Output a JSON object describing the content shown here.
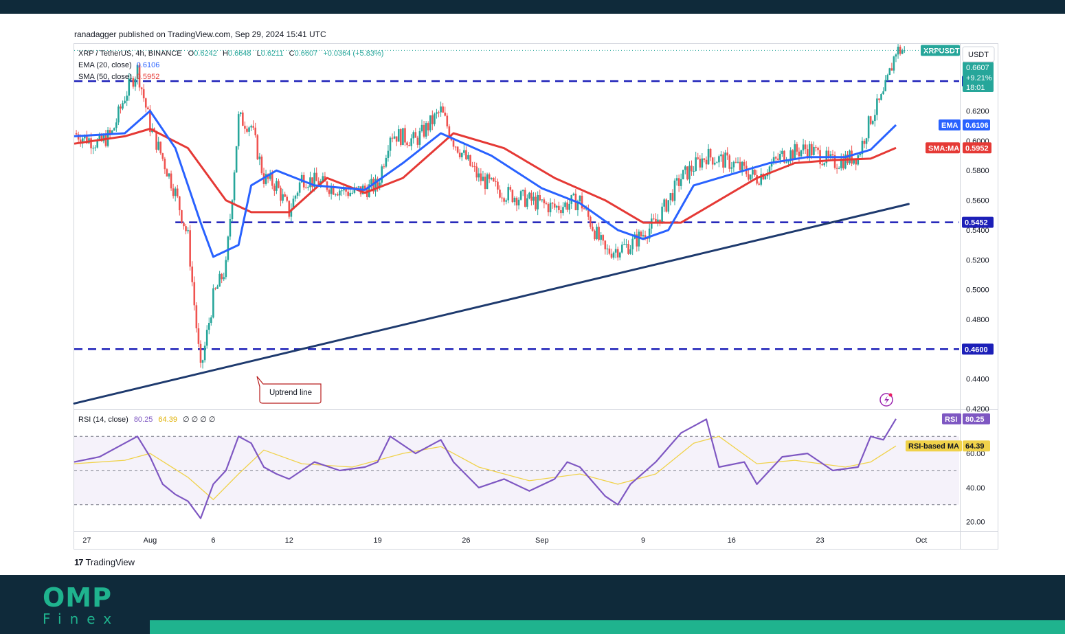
{
  "publisher": "ranadagger published on TradingView.com, Sep 29, 2024 15:41 UTC",
  "branding": {
    "tradingview": "TradingView",
    "logo_main": "OMP",
    "logo_sub": "Finex"
  },
  "colors": {
    "up": "#26a69a",
    "down": "#ef5350",
    "ema": "#2962ff",
    "sma": "#e53935",
    "rsi": "#7e57c2",
    "rsi_ma": "#f0d24a",
    "levels": "#1c1fb8",
    "trend": "#1e3a6e",
    "brand_dark": "#0f2a3a",
    "brand_green": "#1fb38e"
  },
  "chart_data": {
    "type": "candlestick",
    "symbol": "XRP / TetherUS, 4h, BINANCE",
    "ohlc": {
      "open": "0.6242",
      "high": "0.6648",
      "low": "0.6211",
      "close": "0.6607",
      "change": "+0.0364 (+5.83%)"
    },
    "indicators": {
      "ema": {
        "label": "EMA (20, close)",
        "value": "0.6106"
      },
      "sma": {
        "label": "SMA (50, close)",
        "value": "0.5952"
      }
    },
    "currency": "USDT",
    "ylim": [
      0.42,
      0.665
    ],
    "y_ticks": [
      "0.6200",
      "0.6000",
      "0.5800",
      "0.5600",
      "0.5400",
      "0.5200",
      "0.5000",
      "0.4800",
      "0.4400",
      "0.4200"
    ],
    "x_ticks": [
      "27",
      "Aug",
      "6",
      "12",
      "19",
      "26",
      "Sep",
      "9",
      "16",
      "23",
      "Oct"
    ],
    "horizontal_levels": [
      {
        "value": 0.64,
        "label": "0.6400"
      },
      {
        "value": 0.5452,
        "label": "0.5452"
      },
      {
        "value": 0.46,
        "label": "0.4600"
      }
    ],
    "price_tags": {
      "symbol_tag": "XRPUSDT",
      "last": "0.6607",
      "change_pct": "+9.21%",
      "countdown": "18:01",
      "ema_tag": "EMA",
      "ema_value": "0.6106",
      "sma_tag": "SMA:MA",
      "sma_value": "0.5952"
    },
    "trendline": {
      "label": "Uptrend line",
      "from": [
        "Jul 26",
        0.4235
      ],
      "to": [
        "Sep 30",
        0.5575
      ]
    },
    "close_path": [
      [
        "Jul 26",
        0.605
      ],
      [
        "Jul 28",
        0.598
      ],
      [
        "Jul 29",
        0.605
      ],
      [
        "Jul 30",
        0.63
      ],
      [
        "Jul 31",
        0.648
      ],
      [
        "Aug 1",
        0.61
      ],
      [
        "Aug 2",
        0.588
      ],
      [
        "Aug 3",
        0.565
      ],
      [
        "Aug 4",
        0.535
      ],
      [
        "Aug 5",
        0.445
      ],
      [
        "Aug 6",
        0.495
      ],
      [
        "Aug 7",
        0.515
      ],
      [
        "Aug 8",
        0.615
      ],
      [
        "Aug 9",
        0.61
      ],
      [
        "Aug 10",
        0.575
      ],
      [
        "Aug 11",
        0.57
      ],
      [
        "Aug 12",
        0.552
      ],
      [
        "Aug 13",
        0.575
      ],
      [
        "Aug 15",
        0.57
      ],
      [
        "Aug 17",
        0.565
      ],
      [
        "Aug 19",
        0.57
      ],
      [
        "Aug 20",
        0.605
      ],
      [
        "Aug 22",
        0.6
      ],
      [
        "Aug 24",
        0.62
      ],
      [
        "Aug 25",
        0.6
      ],
      [
        "Aug 27",
        0.575
      ],
      [
        "Aug 29",
        0.565
      ],
      [
        "Aug 31",
        0.56
      ],
      [
        "Sep 2",
        0.555
      ],
      [
        "Sep 4",
        0.56
      ],
      [
        "Sep 6",
        0.525
      ],
      [
        "Sep 8",
        0.53
      ],
      [
        "Sep 10",
        0.545
      ],
      [
        "Sep 12",
        0.575
      ],
      [
        "Sep 14",
        0.59
      ],
      [
        "Sep 16",
        0.585
      ],
      [
        "Sep 18",
        0.575
      ],
      [
        "Sep 20",
        0.59
      ],
      [
        "Sep 22",
        0.595
      ],
      [
        "Sep 24",
        0.585
      ],
      [
        "Sep 26",
        0.59
      ],
      [
        "Sep 27",
        0.615
      ],
      [
        "Sep 28",
        0.63
      ],
      [
        "Sep 29",
        0.6607
      ]
    ],
    "ema_path": [
      [
        "Jul 26",
        0.603
      ],
      [
        "Jul 30",
        0.605
      ],
      [
        "Aug 1",
        0.62
      ],
      [
        "Aug 3",
        0.595
      ],
      [
        "Aug 5",
        0.545
      ],
      [
        "Aug 6",
        0.522
      ],
      [
        "Aug 8",
        0.53
      ],
      [
        "Aug 9",
        0.57
      ],
      [
        "Aug 11",
        0.58
      ],
      [
        "Aug 14",
        0.57
      ],
      [
        "Aug 18",
        0.567
      ],
      [
        "Aug 21",
        0.585
      ],
      [
        "Aug 24",
        0.605
      ],
      [
        "Aug 28",
        0.59
      ],
      [
        "Sep 1",
        0.568
      ],
      [
        "Sep 4",
        0.558
      ],
      [
        "Sep 7",
        0.54
      ],
      [
        "Sep 9",
        0.534
      ],
      [
        "Sep 11",
        0.54
      ],
      [
        "Sep 13",
        0.57
      ],
      [
        "Sep 15",
        0.575
      ],
      [
        "Sep 17",
        0.58
      ],
      [
        "Sep 19",
        0.585
      ],
      [
        "Sep 22",
        0.589
      ],
      [
        "Sep 25",
        0.589
      ],
      [
        "Sep 27",
        0.594
      ],
      [
        "Sep 29",
        0.6106
      ]
    ],
    "sma_path": [
      [
        "Jul 26",
        0.598
      ],
      [
        "Jul 30",
        0.603
      ],
      [
        "Aug 1",
        0.608
      ],
      [
        "Aug 4",
        0.595
      ],
      [
        "Aug 7",
        0.56
      ],
      [
        "Aug 9",
        0.552
      ],
      [
        "Aug 12",
        0.552
      ],
      [
        "Aug 15",
        0.575
      ],
      [
        "Aug 18",
        0.565
      ],
      [
        "Aug 21",
        0.575
      ],
      [
        "Aug 25",
        0.605
      ],
      [
        "Aug 29",
        0.595
      ],
      [
        "Sep 2",
        0.575
      ],
      [
        "Sep 6",
        0.56
      ],
      [
        "Sep 9",
        0.545
      ],
      [
        "Sep 12",
        0.545
      ],
      [
        "Sep 15",
        0.56
      ],
      [
        "Sep 18",
        0.575
      ],
      [
        "Sep 21",
        0.585
      ],
      [
        "Sep 24",
        0.587
      ],
      [
        "Sep 27",
        0.588
      ],
      [
        "Sep 29",
        0.5952
      ]
    ],
    "rsi": {
      "label": "RSI (14, close)",
      "value": "80.25",
      "ma_value": "64.39",
      "extras": "∅ ∅ ∅ ∅",
      "tag": "RSI",
      "ma_tag": "RSI-based MA",
      "ylim": [
        15,
        85
      ],
      "y_ticks": [
        "60.00",
        "40.00",
        "20.00"
      ],
      "bands": [
        30,
        50,
        70
      ],
      "path": [
        [
          "Jul 26",
          55
        ],
        [
          "Jul 28",
          58
        ],
        [
          "Jul 30",
          66
        ],
        [
          "Jul 31",
          70
        ],
        [
          "Aug 1",
          58
        ],
        [
          "Aug 2",
          42
        ],
        [
          "Aug 3",
          36
        ],
        [
          "Aug 4",
          32
        ],
        [
          "Aug 5",
          22
        ],
        [
          "Aug 6",
          42
        ],
        [
          "Aug 7",
          50
        ],
        [
          "Aug 8",
          70
        ],
        [
          "Aug 9",
          66
        ],
        [
          "Aug 10",
          52
        ],
        [
          "Aug 11",
          48
        ],
        [
          "Aug 12",
          45
        ],
        [
          "Aug 14",
          55
        ],
        [
          "Aug 16",
          50
        ],
        [
          "Aug 18",
          52
        ],
        [
          "Aug 19",
          55
        ],
        [
          "Aug 20",
          70
        ],
        [
          "Aug 22",
          60
        ],
        [
          "Aug 24",
          68
        ],
        [
          "Aug 25",
          55
        ],
        [
          "Aug 27",
          40
        ],
        [
          "Aug 29",
          45
        ],
        [
          "Aug 31",
          38
        ],
        [
          "Sep 2",
          45
        ],
        [
          "Sep 3",
          55
        ],
        [
          "Sep 4",
          52
        ],
        [
          "Sep 6",
          35
        ],
        [
          "Sep 7",
          30
        ],
        [
          "Sep 8",
          42
        ],
        [
          "Sep 10",
          55
        ],
        [
          "Sep 12",
          72
        ],
        [
          "Sep 14",
          80
        ],
        [
          "Sep 15",
          52
        ],
        [
          "Sep 17",
          55
        ],
        [
          "Sep 18",
          42
        ],
        [
          "Sep 20",
          58
        ],
        [
          "Sep 22",
          60
        ],
        [
          "Sep 24",
          50
        ],
        [
          "Sep 26",
          52
        ],
        [
          "Sep 27",
          70
        ],
        [
          "Sep 28",
          68
        ],
        [
          "Sep 29",
          80.25
        ]
      ],
      "ma_path": [
        [
          "Jul 26",
          54
        ],
        [
          "Jul 30",
          56
        ],
        [
          "Aug 1",
          60
        ],
        [
          "Aug 4",
          46
        ],
        [
          "Aug 6",
          33
        ],
        [
          "Aug 8",
          48
        ],
        [
          "Aug 10",
          62
        ],
        [
          "Aug 13",
          54
        ],
        [
          "Aug 17",
          52
        ],
        [
          "Aug 21",
          60
        ],
        [
          "Aug 24",
          64
        ],
        [
          "Aug 27",
          52
        ],
        [
          "Aug 31",
          44
        ],
        [
          "Sep 4",
          48
        ],
        [
          "Sep 7",
          42
        ],
        [
          "Sep 10",
          48
        ],
        [
          "Sep 13",
          66
        ],
        [
          "Sep 15",
          70
        ],
        [
          "Sep 18",
          54
        ],
        [
          "Sep 21",
          56
        ],
        [
          "Sep 25",
          52
        ],
        [
          "Sep 27",
          55
        ],
        [
          "Sep 29",
          64.39
        ]
      ]
    }
  }
}
